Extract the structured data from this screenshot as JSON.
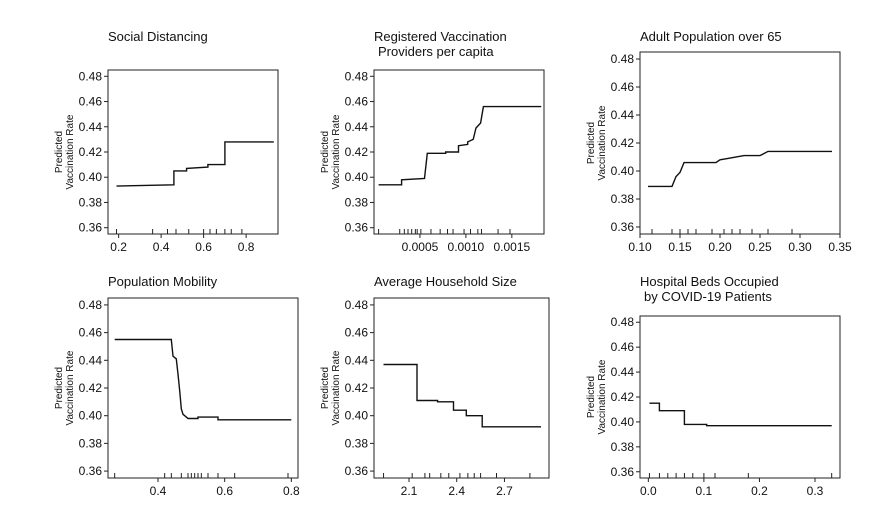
{
  "chart_data": [
    {
      "type": "line",
      "title_lines": [
        "Social Distancing"
      ],
      "ylabel_lines": [
        "Predicted",
        "Vaccination Rate"
      ],
      "xlim": [
        0.15,
        0.95
      ],
      "ylim": [
        0.355,
        0.485
      ],
      "xticks": [
        0.2,
        0.4,
        0.6,
        0.8
      ],
      "xtick_labels": [
        "0.2",
        "0.4",
        "0.6",
        "0.8"
      ],
      "yticks": [
        0.36,
        0.38,
        0.4,
        0.42,
        0.44,
        0.46,
        0.48
      ],
      "ytick_labels": [
        "0.36",
        "0.38",
        "0.40",
        "0.42",
        "0.44",
        "0.46",
        "0.48"
      ],
      "x": [
        0.19,
        0.46,
        0.46,
        0.52,
        0.52,
        0.62,
        0.62,
        0.7,
        0.7,
        0.93
      ],
      "y": [
        0.393,
        0.394,
        0.405,
        0.405,
        0.407,
        0.408,
        0.41,
        0.41,
        0.428,
        0.428
      ],
      "rug": [
        0.19,
        0.36,
        0.43,
        0.47,
        0.53,
        0.6,
        0.63,
        0.66,
        0.7,
        0.73,
        0.78
      ]
    },
    {
      "type": "line",
      "title_lines": [
        "Registered Vaccination",
        "Providers per capita"
      ],
      "ylabel_lines": [
        "Predicted",
        "Vaccination Rate"
      ],
      "xlim": [
        0.0,
        0.00185
      ],
      "ylim": [
        0.355,
        0.485
      ],
      "xticks": [
        0.0005,
        0.001,
        0.0015
      ],
      "xtick_labels": [
        "0.0005",
        "0.0010",
        "0.0015"
      ],
      "yticks": [
        0.36,
        0.38,
        0.4,
        0.42,
        0.44,
        0.46,
        0.48
      ],
      "ytick_labels": [
        "0.36",
        "0.38",
        "0.40",
        "0.42",
        "0.44",
        "0.46",
        "0.48"
      ],
      "x": [
        5e-05,
        0.0003,
        0.0003,
        0.00055,
        0.00058,
        0.00078,
        0.00078,
        0.00092,
        0.00092,
        0.00102,
        0.00102,
        0.00108,
        0.00111,
        0.00116,
        0.00119,
        0.00182
      ],
      "y": [
        0.394,
        0.394,
        0.398,
        0.399,
        0.419,
        0.419,
        0.42,
        0.42,
        0.425,
        0.426,
        0.428,
        0.43,
        0.439,
        0.443,
        0.456,
        0.456
      ],
      "rug": [
        5e-05,
        0.00028,
        0.00033,
        0.00037,
        0.00041,
        0.00045,
        0.00047,
        0.00051,
        0.00062,
        0.00072,
        0.0008,
        0.00086,
        0.00098,
        0.00105,
        0.00113,
        0.00117,
        0.00135,
        0.00148
      ]
    },
    {
      "type": "line",
      "title_lines": [
        "Adult Population over 65"
      ],
      "ylabel_lines": [
        "Predicted",
        "Vaccination Rate"
      ],
      "xlim": [
        0.1,
        0.35
      ],
      "ylim": [
        0.355,
        0.485
      ],
      "xticks": [
        0.1,
        0.15,
        0.2,
        0.25,
        0.3,
        0.35
      ],
      "xtick_labels": [
        "0.10",
        "0.15",
        "0.20",
        "0.25",
        "0.30",
        "0.35"
      ],
      "yticks": [
        0.36,
        0.38,
        0.4,
        0.42,
        0.44,
        0.46,
        0.48
      ],
      "ytick_labels": [
        "0.36",
        "0.38",
        "0.40",
        "0.42",
        "0.44",
        "0.46",
        "0.48"
      ],
      "x": [
        0.11,
        0.14,
        0.145,
        0.15,
        0.155,
        0.195,
        0.2,
        0.21,
        0.23,
        0.25,
        0.26,
        0.34
      ],
      "y": [
        0.389,
        0.389,
        0.396,
        0.399,
        0.406,
        0.406,
        0.408,
        0.409,
        0.411,
        0.411,
        0.414,
        0.414
      ],
      "rug": [
        0.115,
        0.14,
        0.15,
        0.16,
        0.17,
        0.19,
        0.205,
        0.215,
        0.225,
        0.24,
        0.26,
        0.29
      ]
    },
    {
      "type": "line",
      "title_lines": [
        "Population Mobility"
      ],
      "ylabel_lines": [
        "Predicted",
        "Vaccination Rate"
      ],
      "xlim": [
        0.25,
        0.82
      ],
      "ylim": [
        0.355,
        0.485
      ],
      "xticks": [
        0.4,
        0.6,
        0.8
      ],
      "xtick_labels": [
        "0.4",
        "0.6",
        "0.8"
      ],
      "yticks": [
        0.36,
        0.38,
        0.4,
        0.42,
        0.44,
        0.46,
        0.48
      ],
      "ytick_labels": [
        "0.36",
        "0.38",
        "0.40",
        "0.42",
        "0.44",
        "0.46",
        "0.48"
      ],
      "x": [
        0.27,
        0.44,
        0.445,
        0.455,
        0.46,
        0.465,
        0.47,
        0.475,
        0.48,
        0.49,
        0.52,
        0.52,
        0.58,
        0.58,
        0.8
      ],
      "y": [
        0.455,
        0.455,
        0.443,
        0.441,
        0.43,
        0.418,
        0.405,
        0.401,
        0.4,
        0.398,
        0.398,
        0.399,
        0.399,
        0.397,
        0.397
      ],
      "rug": [
        0.27,
        0.42,
        0.44,
        0.47,
        0.49,
        0.5,
        0.51,
        0.52,
        0.53,
        0.55,
        0.58,
        0.63,
        0.79
      ]
    },
    {
      "type": "line",
      "title_lines": [
        "Average Household Size"
      ],
      "ylabel_lines": [
        "Predicted",
        "Vaccination Rate"
      ],
      "xlim": [
        1.88,
        2.98
      ],
      "ylim": [
        0.355,
        0.485
      ],
      "xticks": [
        2.1,
        2.4,
        2.7
      ],
      "xtick_labels": [
        "2.1",
        "2.4",
        "2.7"
      ],
      "yticks": [
        0.36,
        0.38,
        0.4,
        0.42,
        0.44,
        0.46,
        0.48
      ],
      "ytick_labels": [
        "0.36",
        "0.38",
        "0.40",
        "0.42",
        "0.44",
        "0.46",
        "0.48"
      ],
      "x": [
        1.94,
        2.15,
        2.15,
        2.28,
        2.28,
        2.38,
        2.38,
        2.46,
        2.46,
        2.56,
        2.56,
        2.93
      ],
      "y": [
        0.437,
        0.437,
        0.411,
        0.411,
        0.41,
        0.41,
        0.404,
        0.404,
        0.4,
        0.4,
        0.392,
        0.392
      ],
      "rug": [
        1.94,
        2.12,
        2.2,
        2.23,
        2.3,
        2.35,
        2.42,
        2.47,
        2.51,
        2.55,
        2.65,
        2.86
      ]
    },
    {
      "type": "line",
      "title_lines": [
        "Hospital Beds Occupied",
        "by COVID-19 Patients"
      ],
      "ylabel_lines": [
        "Predicted",
        "Vaccination Rate"
      ],
      "xlim": [
        -0.015,
        0.345
      ],
      "ylim": [
        0.355,
        0.485
      ],
      "xticks": [
        0.0,
        0.1,
        0.2,
        0.3
      ],
      "xtick_labels": [
        "0.0",
        "0.1",
        "0.2",
        "0.3"
      ],
      "yticks": [
        0.36,
        0.38,
        0.4,
        0.42,
        0.44,
        0.46,
        0.48
      ],
      "ytick_labels": [
        "0.36",
        "0.38",
        "0.40",
        "0.42",
        "0.44",
        "0.46",
        "0.48"
      ],
      "x": [
        0.002,
        0.02,
        0.02,
        0.045,
        0.045,
        0.065,
        0.065,
        0.105,
        0.105,
        0.33
      ],
      "y": [
        0.415,
        0.415,
        0.409,
        0.409,
        0.409,
        0.409,
        0.398,
        0.398,
        0.397,
        0.397
      ],
      "rug": [
        0.002,
        0.02,
        0.035,
        0.05,
        0.065,
        0.08,
        0.1,
        0.12,
        0.18,
        0.33
      ]
    }
  ]
}
